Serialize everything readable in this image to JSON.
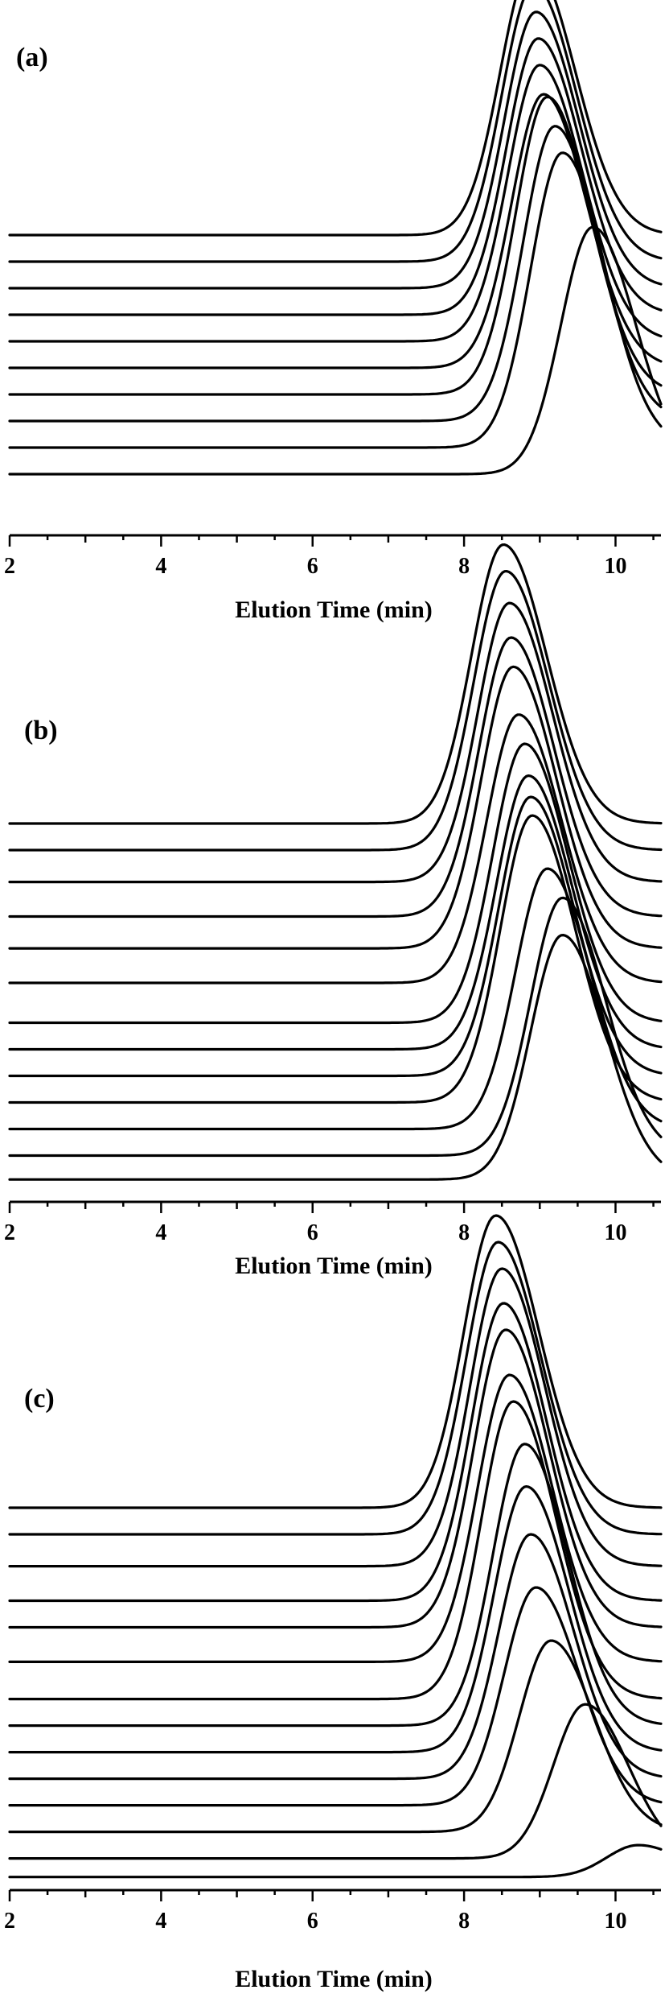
{
  "chart_data": [
    {
      "type": "line",
      "panel_label": "(a)",
      "xlabel": "Elution Time (min)",
      "xlim": [
        2,
        10.6
      ],
      "xticks": [
        2,
        4,
        6,
        8,
        10
      ],
      "grid": false,
      "series": [
        {
          "baseline": 10,
          "peak_x": 9.7,
          "peak_height": 93
        },
        {
          "baseline": 20,
          "peak_x": 9.3,
          "peak_height": 111
        },
        {
          "baseline": 30,
          "peak_x": 9.2,
          "peak_height": 111
        },
        {
          "baseline": 40,
          "peak_x": 9.1,
          "peak_height": 112
        },
        {
          "baseline": 50,
          "peak_x": 9.05,
          "peak_height": 103
        },
        {
          "baseline": 60,
          "peak_x": 9.0,
          "peak_height": 104
        },
        {
          "baseline": 70,
          "peak_x": 8.98,
          "peak_height": 104
        },
        {
          "baseline": 80,
          "peak_x": 8.95,
          "peak_height": 104
        },
        {
          "baseline": 90,
          "peak_x": 8.92,
          "peak_height": 104
        },
        {
          "baseline": 100,
          "peak_x": 8.9,
          "peak_height": 102
        }
      ]
    },
    {
      "type": "line",
      "panel_label": "(b)",
      "xlabel": "Elution Time (min)",
      "xlim": [
        2,
        10.6
      ],
      "xticks": [
        2,
        4,
        6,
        8,
        10
      ],
      "grid": false,
      "series": [
        {
          "baseline": 6,
          "peak_x": 9.3,
          "peak_height": 92
        },
        {
          "baseline": 15,
          "peak_x": 9.3,
          "peak_height": 97
        },
        {
          "baseline": 25,
          "peak_x": 9.1,
          "peak_height": 98
        },
        {
          "baseline": 35,
          "peak_x": 8.9,
          "peak_height": 108
        },
        {
          "baseline": 45,
          "peak_x": 8.88,
          "peak_height": 105
        },
        {
          "baseline": 55,
          "peak_x": 8.85,
          "peak_height": 103
        },
        {
          "baseline": 65,
          "peak_x": 8.8,
          "peak_height": 105
        },
        {
          "baseline": 80,
          "peak_x": 8.72,
          "peak_height": 101
        },
        {
          "baseline": 93,
          "peak_x": 8.65,
          "peak_height": 106
        },
        {
          "baseline": 105,
          "peak_x": 8.62,
          "peak_height": 105
        },
        {
          "baseline": 118,
          "peak_x": 8.6,
          "peak_height": 105
        },
        {
          "baseline": 130,
          "peak_x": 8.55,
          "peak_height": 105
        },
        {
          "baseline": 140,
          "peak_x": 8.52,
          "peak_height": 105
        }
      ]
    },
    {
      "type": "line",
      "panel_label": "(c)",
      "xlabel": "Elution Time (min)",
      "xlim": [
        2,
        10.6
      ],
      "xticks": [
        2,
        4,
        6,
        8,
        10
      ],
      "grid": false,
      "series": [
        {
          "baseline": 1,
          "peak_x": 10.3,
          "peak_height": 12
        },
        {
          "baseline": 8,
          "peak_x": 9.6,
          "peak_height": 58
        },
        {
          "baseline": 18,
          "peak_x": 9.15,
          "peak_height": 72
        },
        {
          "baseline": 28,
          "peak_x": 8.95,
          "peak_height": 82
        },
        {
          "baseline": 38,
          "peak_x": 8.88,
          "peak_height": 92
        },
        {
          "baseline": 48,
          "peak_x": 8.82,
          "peak_height": 100
        },
        {
          "baseline": 58,
          "peak_x": 8.8,
          "peak_height": 106
        },
        {
          "baseline": 68,
          "peak_x": 8.65,
          "peak_height": 112
        },
        {
          "baseline": 82,
          "peak_x": 8.6,
          "peak_height": 108
        },
        {
          "baseline": 95,
          "peak_x": 8.55,
          "peak_height": 112
        },
        {
          "baseline": 105,
          "peak_x": 8.52,
          "peak_height": 112
        },
        {
          "baseline": 118,
          "peak_x": 8.5,
          "peak_height": 112
        },
        {
          "baseline": 130,
          "peak_x": 8.45,
          "peak_height": 110
        },
        {
          "baseline": 140,
          "peak_x": 8.42,
          "peak_height": 110
        }
      ]
    }
  ]
}
